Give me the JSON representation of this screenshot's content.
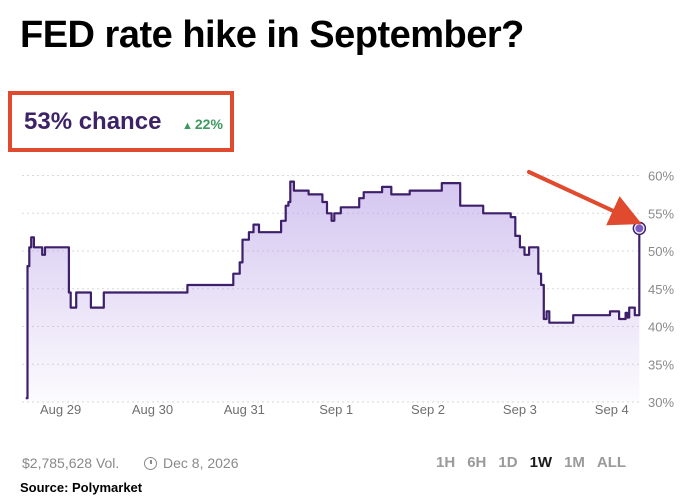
{
  "title": "FED rate hike in September?",
  "summary": {
    "chance": "53% chance",
    "change": "22%",
    "change_color": "#3c9a5f"
  },
  "footer": {
    "volume": "$2,785,628 Vol.",
    "date": "Dec 8, 2026",
    "source": "Source: Polymarket"
  },
  "ranges": [
    {
      "label": "1H",
      "active": false
    },
    {
      "label": "6H",
      "active": false
    },
    {
      "label": "1D",
      "active": false
    },
    {
      "label": "1W",
      "active": true
    },
    {
      "label": "1M",
      "active": false
    },
    {
      "label": "ALL",
      "active": false
    }
  ],
  "colors": {
    "line": "#3d1f6b",
    "fill": "#b8a0e6",
    "arrow": "#e04a2f",
    "highlight": "#e04a2f"
  },
  "chart_data": {
    "type": "line",
    "title": "FED rate hike in September?",
    "xlabel": "",
    "ylabel": "",
    "x_ticks": [
      "Aug 29",
      "Aug 30",
      "Aug 31",
      "Sep 1",
      "Sep 2",
      "Sep 3",
      "Sep 4"
    ],
    "y_ticks": [
      "30%",
      "35%",
      "40%",
      "45%",
      "50%",
      "55%",
      "60%"
    ],
    "ylim": [
      30,
      61
    ],
    "xlim": [
      -0.42,
      6.22
    ],
    "grid": true,
    "step": true,
    "series": [
      {
        "values": [
          [
            -0.38,
            30.5
          ],
          [
            -0.36,
            48
          ],
          [
            -0.34,
            50.5
          ],
          [
            -0.32,
            51.8
          ],
          [
            -0.29,
            50.5
          ],
          [
            -0.24,
            50.5
          ],
          [
            -0.2,
            49.5
          ],
          [
            -0.17,
            50.5
          ],
          [
            -0.08,
            50.5
          ],
          [
            0.06,
            50.5
          ],
          [
            0.09,
            44.5
          ],
          [
            0.11,
            42.5
          ],
          [
            0.17,
            44.5
          ],
          [
            0.27,
            44.5
          ],
          [
            0.33,
            42.5
          ],
          [
            0.43,
            42.5
          ],
          [
            0.47,
            44.5
          ],
          [
            1.35,
            44.5
          ],
          [
            1.38,
            45.5
          ],
          [
            1.85,
            45.5
          ],
          [
            1.88,
            47
          ],
          [
            1.95,
            48.5
          ],
          [
            1.98,
            51.5
          ],
          [
            2.05,
            52.5
          ],
          [
            2.1,
            53.5
          ],
          [
            2.16,
            52.5
          ],
          [
            2.35,
            52.5
          ],
          [
            2.4,
            54
          ],
          [
            2.45,
            56
          ],
          [
            2.48,
            56.5
          ],
          [
            2.5,
            59.2
          ],
          [
            2.54,
            58
          ],
          [
            2.7,
            57.5
          ],
          [
            2.85,
            56.5
          ],
          [
            2.9,
            55
          ],
          [
            2.95,
            54
          ],
          [
            2.98,
            55
          ],
          [
            3.05,
            55.8
          ],
          [
            3.2,
            55.8
          ],
          [
            3.25,
            57
          ],
          [
            3.3,
            57.8
          ],
          [
            3.45,
            57.8
          ],
          [
            3.5,
            58.5
          ],
          [
            3.6,
            57.5
          ],
          [
            3.8,
            58
          ],
          [
            4.1,
            58
          ],
          [
            4.15,
            59
          ],
          [
            4.32,
            59
          ],
          [
            4.35,
            56
          ],
          [
            4.55,
            56
          ],
          [
            4.6,
            55
          ],
          [
            4.85,
            55
          ],
          [
            4.9,
            54.5
          ],
          [
            4.95,
            52
          ],
          [
            5.0,
            50.5
          ],
          [
            5.05,
            49.5
          ],
          [
            5.1,
            50.5
          ],
          [
            5.17,
            50.5
          ],
          [
            5.2,
            47
          ],
          [
            5.23,
            45.5
          ],
          [
            5.26,
            41
          ],
          [
            5.29,
            42
          ],
          [
            5.32,
            40.5
          ],
          [
            5.55,
            40.5
          ],
          [
            5.58,
            41.5
          ],
          [
            5.95,
            41.5
          ],
          [
            5.98,
            42
          ],
          [
            6.05,
            42
          ],
          [
            6.08,
            41
          ],
          [
            6.13,
            41
          ],
          [
            6.15,
            41.8
          ],
          [
            6.17,
            41.2
          ],
          [
            6.19,
            42.5
          ],
          [
            6.25,
            41.5
          ],
          [
            6.27,
            41.5
          ],
          [
            6.3,
            53
          ]
        ]
      }
    ]
  }
}
